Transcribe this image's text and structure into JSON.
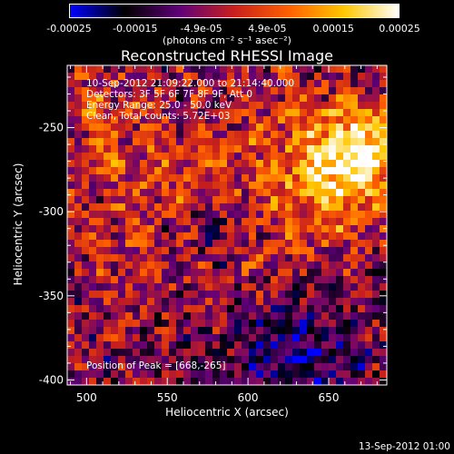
{
  "colorbar": {
    "ticks": [
      "-0.00025",
      "-0.00015",
      "-4.9e-05",
      "4.9e-05",
      "0.00015",
      "0.00025"
    ],
    "unit": "(photons cm⁻² s⁻¹ asec⁻²)",
    "range": [
      -0.00025,
      0.00025
    ]
  },
  "annotations": {
    "time": "10-Sep-2012 21:09:22.000 to 21:14:40.000",
    "detectors": "Detectors: 3F 5F 6F 7F 8F 9F, Att 0",
    "energy": "Energy Range: 25.0 - 50.0 keV",
    "method": "Clean,   Total counts: 5.72E+03",
    "peak": "Position of Peak = [668,-265]"
  },
  "footer": "13-Sep-2012 01:00",
  "chart_data": {
    "type": "heatmap",
    "title": "Reconstructed RHESSI Image",
    "xlabel": "Heliocentric X (arcsec)",
    "ylabel": "Heliocentric Y (arcsec)",
    "xlim": [
      488,
      686
    ],
    "ylim": [
      -403,
      -213
    ],
    "xticks": [
      "500",
      "550",
      "600",
      "650"
    ],
    "yticks": [
      "-250",
      "-300",
      "-350",
      "-400"
    ],
    "xtick_values": [
      500,
      550,
      600,
      650
    ],
    "ytick_values": [
      -250,
      -300,
      -350,
      -400
    ],
    "peak_position": [
      668,
      -265
    ],
    "colormap": [
      "#0000ff",
      "#000000",
      "#600078",
      "#c8201c",
      "#ff6000",
      "#ffc800",
      "#ffffff"
    ]
  }
}
